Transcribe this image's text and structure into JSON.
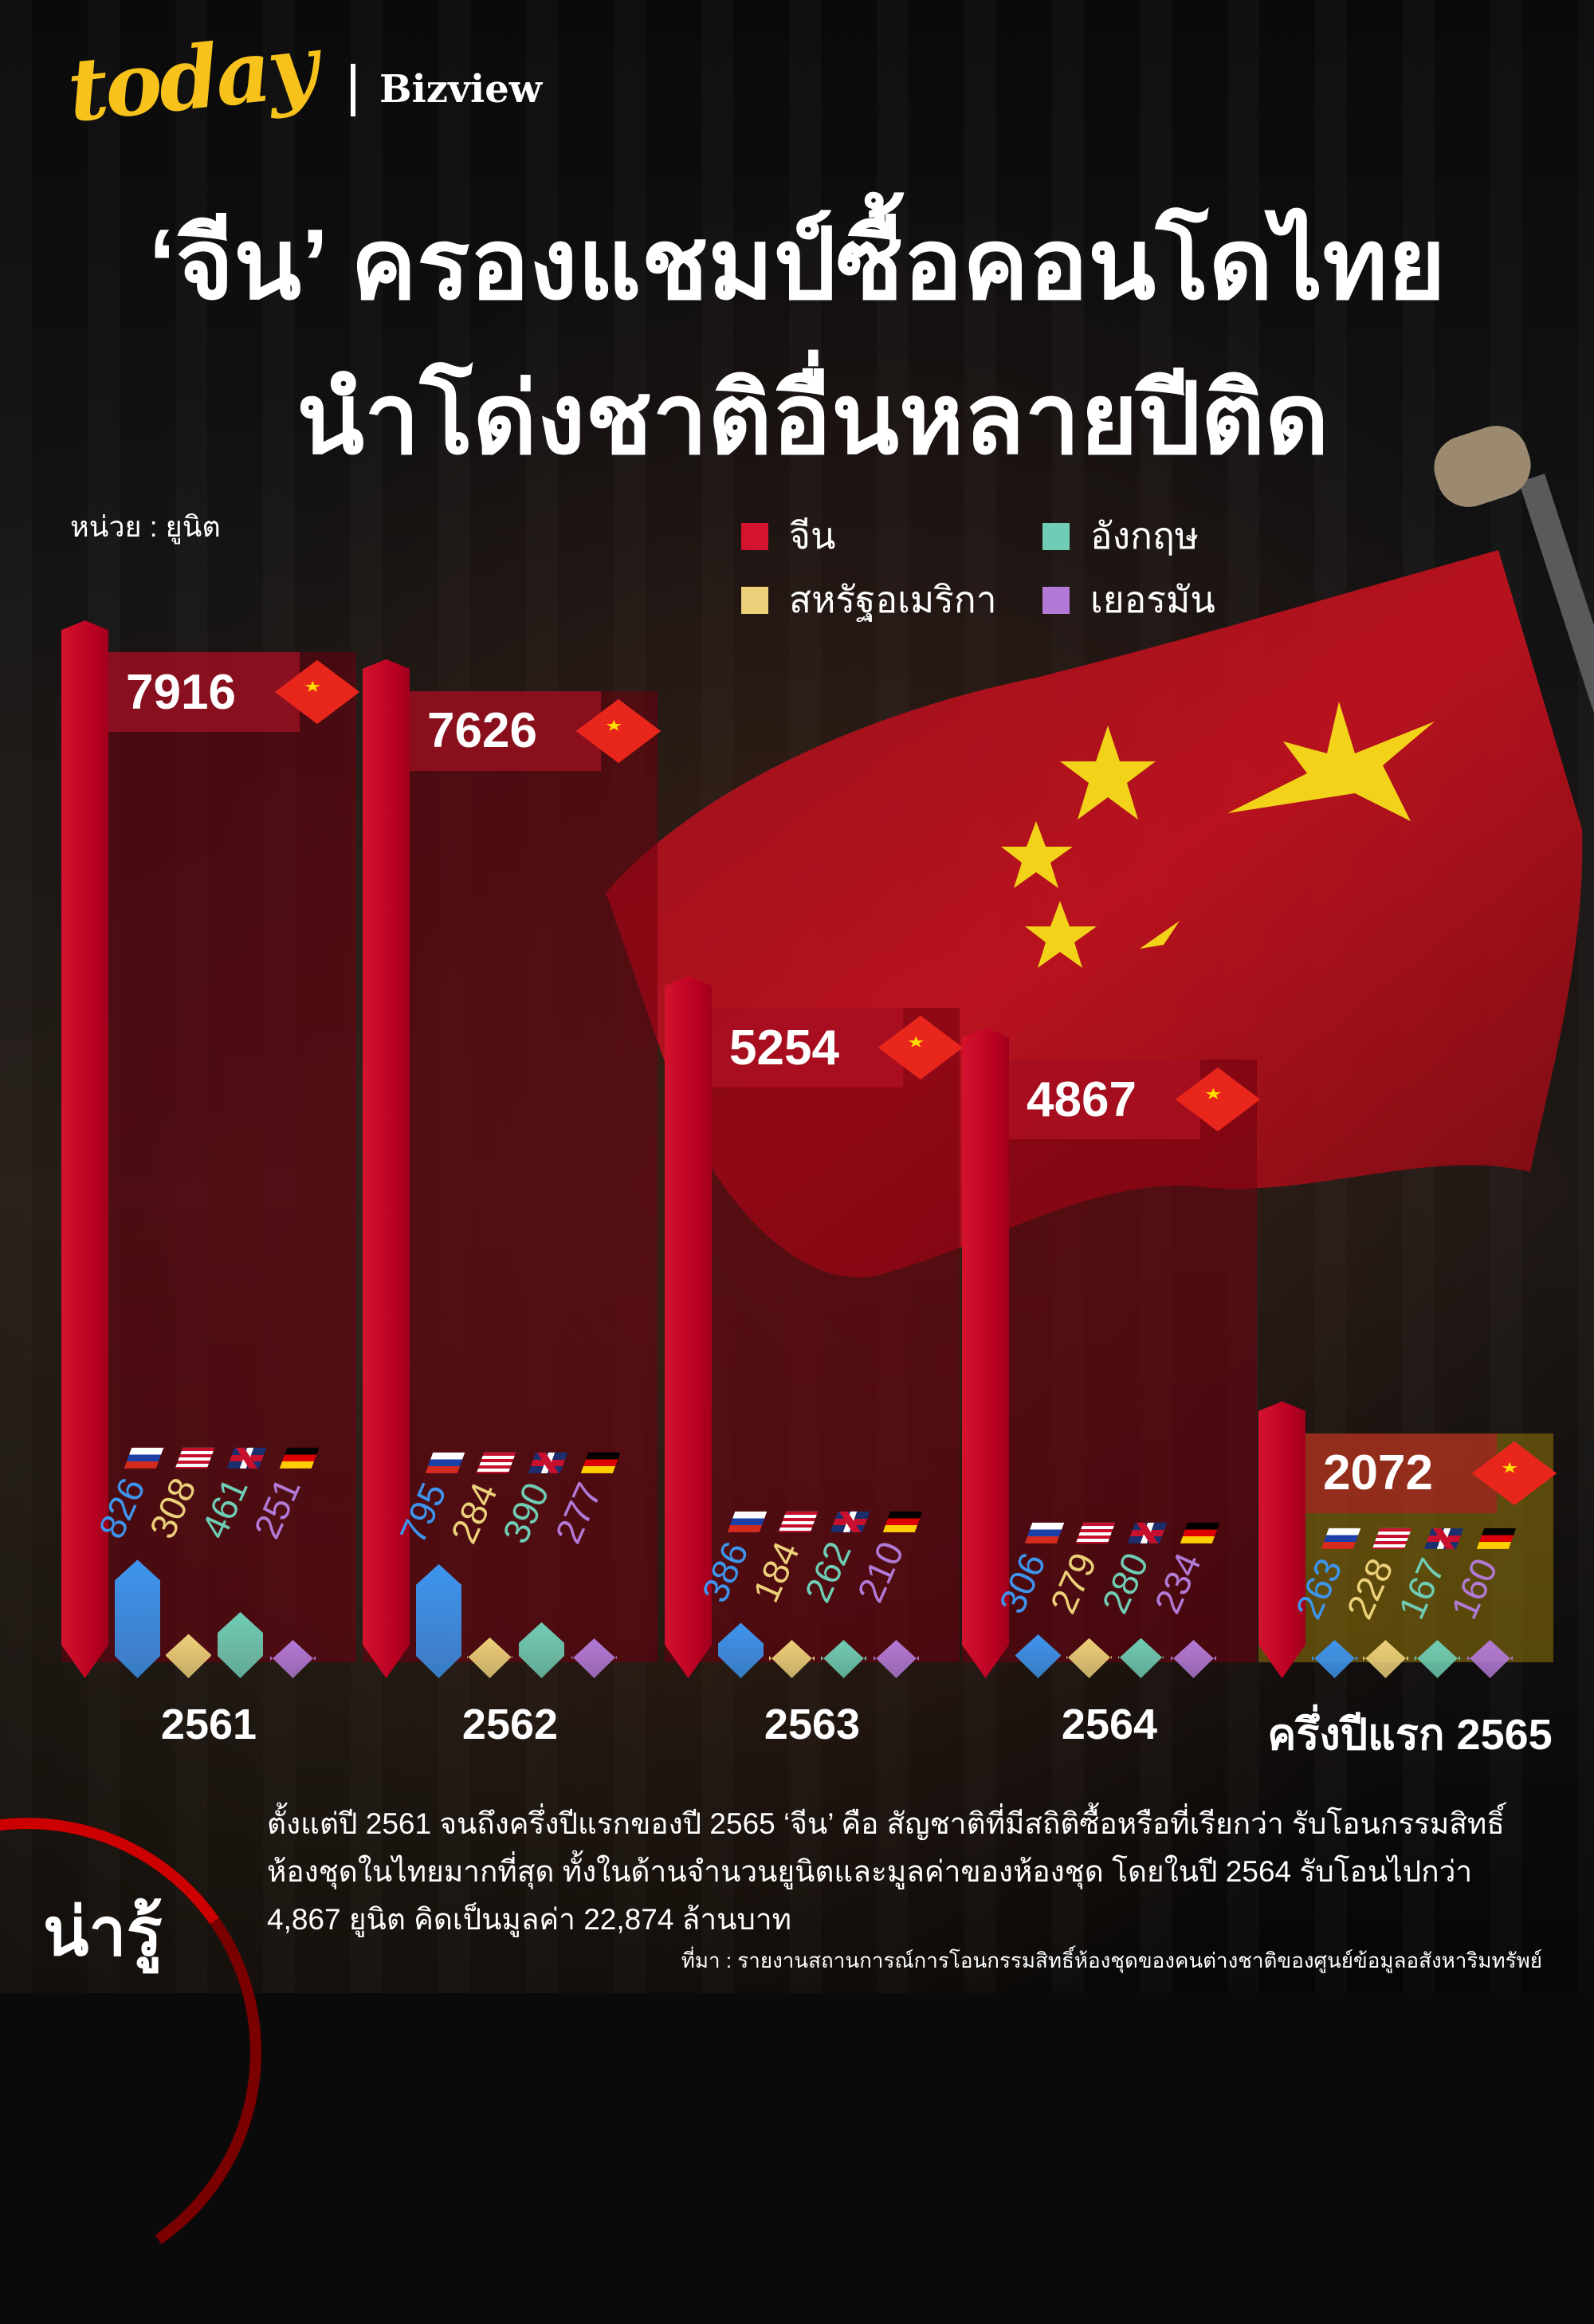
{
  "brand": {
    "logo": "today",
    "partner": "Bizview"
  },
  "title": {
    "line1": "‘จีน’ ครองแชมป์ซื้อคอนโดไทย",
    "line2": "นำโด่งชาติอื่นหลายปีติด"
  },
  "unit_label": "หน่วย : ยูนิต",
  "legend": [
    {
      "label": "จีน",
      "color": "#d4132e"
    },
    {
      "label": "อังกฤษ",
      "color": "#6fcdb5"
    },
    {
      "label": "สหรัฐอเมริกา",
      "color": "#ecd07a"
    },
    {
      "label": "เยอรมัน",
      "color": "#b27ad6"
    }
  ],
  "chart_data": {
    "type": "bar",
    "categories": [
      "2561",
      "2562",
      "2563",
      "2564",
      "ครึ่งปีแรก 2565"
    ],
    "series": [
      {
        "name": "จีน",
        "flag": "china-flag",
        "color": "#d4132e",
        "values": [
          7916,
          7626,
          5254,
          4867,
          2072
        ]
      },
      {
        "flag": "russia-flag",
        "color": "#3d95ee",
        "values": [
          826,
          795,
          386,
          306,
          263
        ]
      },
      {
        "name": "สหรัฐอเมริกา",
        "flag": "usa-flag",
        "color": "#ecd07a",
        "values": [
          308,
          284,
          184,
          279,
          228
        ]
      },
      {
        "name": "อังกฤษ",
        "flag": "uk-flag",
        "color": "#6fcdb5",
        "values": [
          461,
          390,
          262,
          280,
          167
        ]
      },
      {
        "name": "เยอรมัน",
        "flag": "germany-flag",
        "color": "#b27ad6",
        "values": [
          251,
          277,
          210,
          234,
          160
        ]
      }
    ],
    "xlabel": "",
    "ylabel": "",
    "grid": false,
    "legend_position": "top-right"
  },
  "footer": {
    "tag": "น่ารู้",
    "paragraph": "ตั้งแต่ปี 2561 จนถึงครึ่งปีแรกของปี 2565 ‘จีน’ คือ สัญชาติที่มีสถิติซื้อหรือที่เรียกว่า รับโอนกรรมสิทธิ์ห้องชุดในไทยมากที่สุด ทั้งในด้านจำนวนยูนิตและมูลค่าของห้องชุด โดยในปี 2564 รับโอนไปกว่า 4,867 ยูนิต คิดเป็นมูลค่า 22,874 ล้านบาท",
    "source": "ที่มา : รายงานสถานการณ์การโอนกรรมสิทธิ์ห้องชุดของคนต่างชาติของศูนย์ข้อมูลอสังหาริมทรัพย์"
  }
}
